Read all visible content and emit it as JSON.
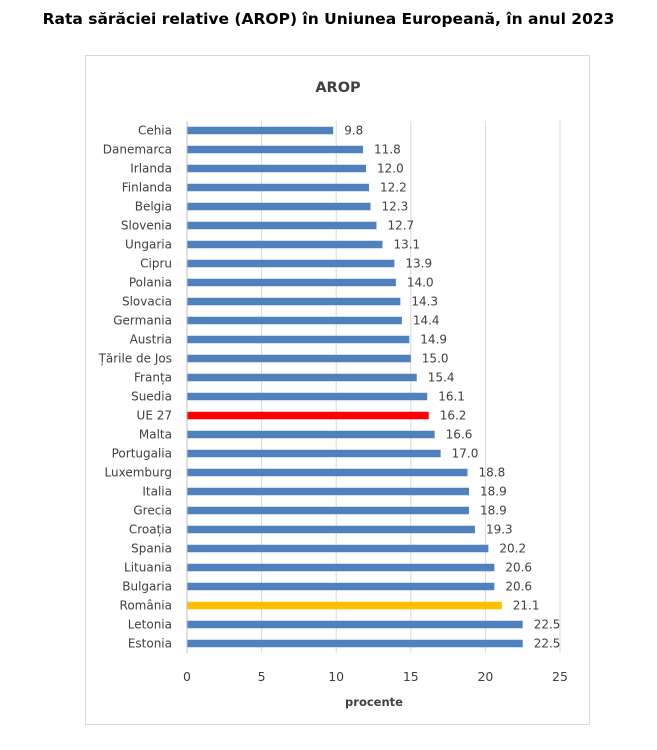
{
  "page": {
    "title": "Rata sărăciei relative (AROP) în Uniunea Europeană, în anul 2023"
  },
  "chart_data": {
    "type": "bar",
    "orientation": "horizontal",
    "title": "AROP",
    "xlabel": "procente",
    "ylabel": "",
    "xlim": [
      0,
      25
    ],
    "xticks": [
      0,
      5,
      10,
      15,
      20,
      25
    ],
    "grid": true,
    "legend": "none",
    "categories": [
      "Cehia",
      "Danemarca",
      "Irlanda",
      "Finlanda",
      "Belgia",
      "Slovenia",
      "Ungaria",
      "Cipru",
      "Polania",
      "Slovacia",
      "Germania",
      "Austria",
      "Țările de Jos",
      "Franța",
      "Suedia",
      "UE 27",
      "Malta",
      "Portugalia",
      "Luxemburg",
      "Italia",
      "Grecia",
      "Croația",
      "Spania",
      "Lituania",
      "Bulgaria",
      "România",
      "Letonia",
      "Estonia"
    ],
    "values": [
      9.8,
      11.8,
      12.0,
      12.2,
      12.3,
      12.7,
      13.1,
      13.9,
      14.0,
      14.3,
      14.4,
      14.9,
      15.0,
      15.4,
      16.1,
      16.2,
      16.6,
      17.0,
      18.8,
      18.9,
      18.9,
      19.3,
      20.2,
      20.6,
      20.6,
      21.1,
      22.5,
      22.5
    ],
    "value_labels": [
      "9.8",
      "11.8",
      "12.0",
      "12.2",
      "12.3",
      "12.7",
      "13.1",
      "13.9",
      "14.0",
      "14.3",
      "14.4",
      "14.9",
      "15.0",
      "15.4",
      "16.1",
      "16.2",
      "16.6",
      "17.0",
      "18.8",
      "18.9",
      "18.9",
      "19.3",
      "20.2",
      "20.6",
      "20.6",
      "21.1",
      "22.5",
      "22.5"
    ],
    "colors": {
      "default": "#4f81bd",
      "highlights": {
        "UE 27": "#ff0000",
        "România": "#ffc000"
      }
    }
  }
}
